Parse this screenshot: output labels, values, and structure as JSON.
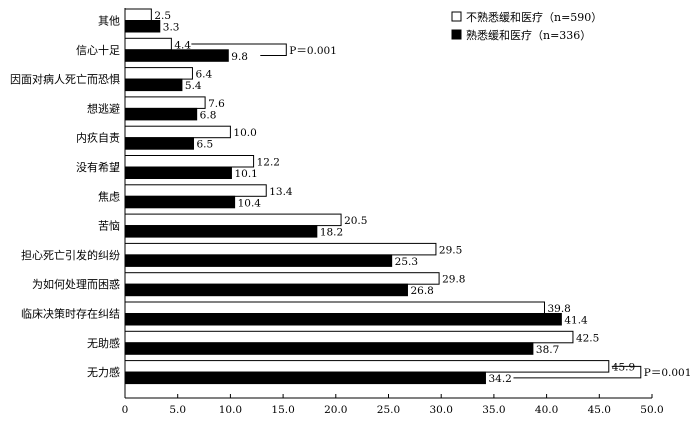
{
  "chart_data": {
    "type": "bar",
    "orientation": "horizontal",
    "categories": [
      "其他",
      "信心十足",
      "因面对病人死亡而恐惧",
      "想逃避",
      "内疚自责",
      "没有希望",
      "焦虑",
      "苦恼",
      "担心死亡引发的纠纷",
      "为如何处理而困惑",
      "临床决策时存在纠结",
      "无助感",
      "无力感"
    ],
    "series": [
      {
        "name": "不熟悉缓和医疗（n=590）",
        "color": "#ffffff",
        "values": [
          2.5,
          4.4,
          6.4,
          7.6,
          10.0,
          12.2,
          13.4,
          20.5,
          29.5,
          29.8,
          39.8,
          42.5,
          45.9
        ],
        "labels": [
          "2.5",
          "4.4",
          "6.4",
          "7.6",
          "10.0",
          "12.2",
          "13.4",
          "20.5",
          "29.5",
          "29.8",
          "39.8",
          "42.5",
          "45.9"
        ]
      },
      {
        "name": "熟悉缓和医疗（n=336）",
        "color": "#000000",
        "values": [
          3.3,
          9.8,
          5.4,
          6.8,
          6.5,
          10.1,
          10.4,
          18.2,
          25.3,
          26.8,
          41.4,
          38.7,
          34.2
        ],
        "labels": [
          "3.3",
          "9.8",
          "5.4",
          "6.8",
          "6.5",
          "10.1",
          "10.4",
          "18.2",
          "25.3",
          "26.8",
          "41.4",
          "38.7",
          "34.2"
        ]
      }
    ],
    "xlim": [
      0,
      50
    ],
    "xticks": [
      "0",
      "5.0",
      "10.0",
      "15.0",
      "20.0",
      "25.0",
      "30.0",
      "35.0",
      "40.0",
      "45.0",
      "50.0"
    ],
    "legend_position": "top-right",
    "annotations": [
      {
        "category_index": 1,
        "text": "P＝0.001"
      },
      {
        "category_index": 12,
        "text": "P＝0.001"
      }
    ]
  }
}
